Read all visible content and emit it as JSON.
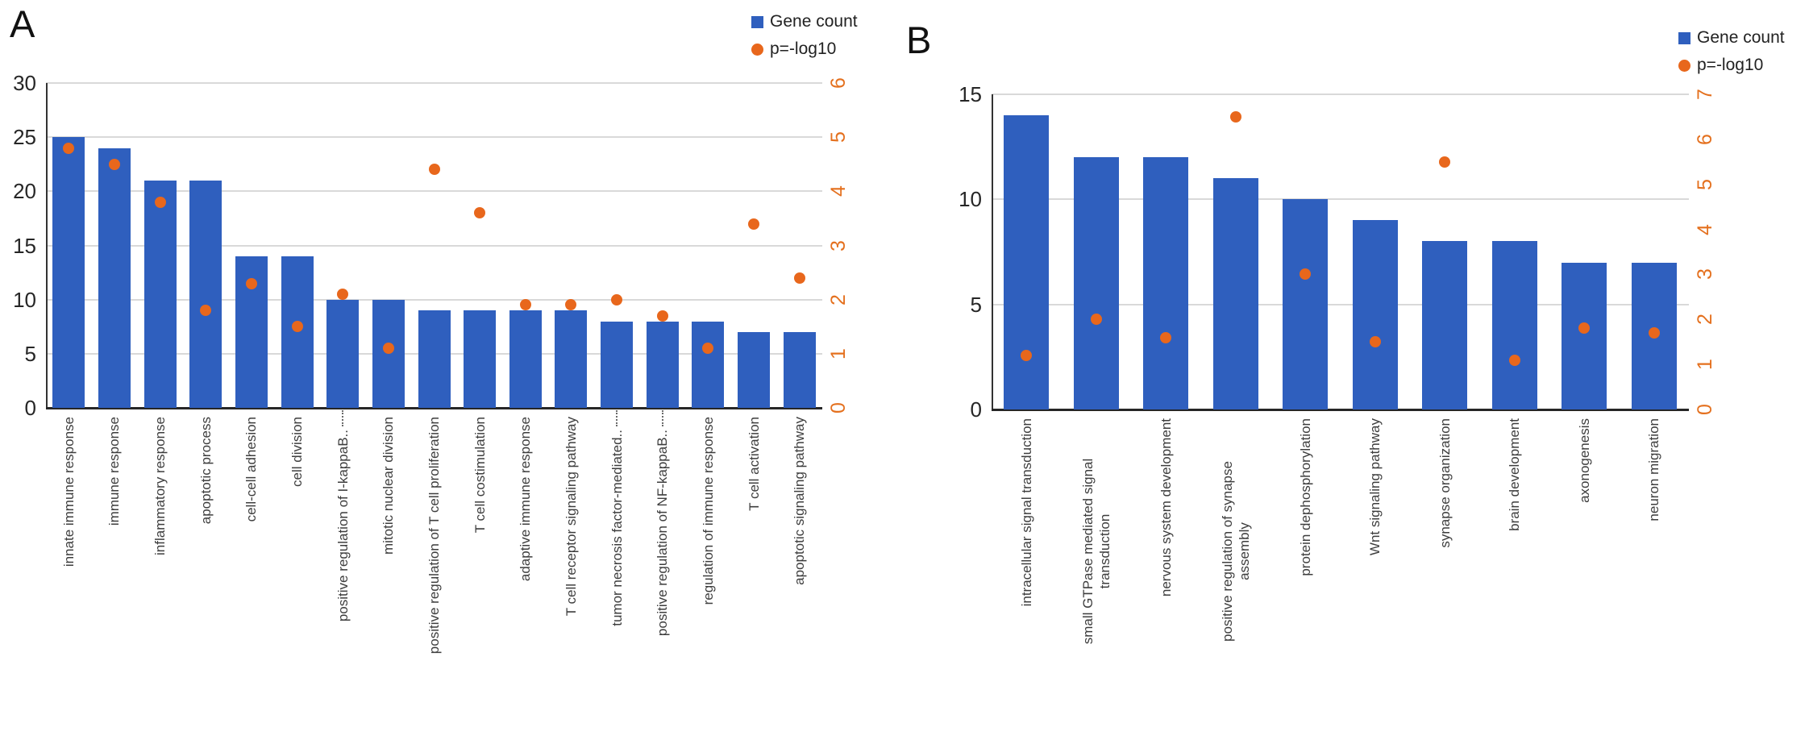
{
  "figure": {
    "panels": [
      {
        "panel_label": "A"
      },
      {
        "panel_label": "B"
      }
    ]
  },
  "colors": {
    "bar_blue": "#2F5FBE",
    "dot_orange": "#E8671C",
    "right_axis_text": "#E4701E",
    "gridline": "#D9D9D9",
    "axis_line": "#333333"
  },
  "chart_data": [
    {
      "type": "bar",
      "panel": "A",
      "title": "",
      "xlabel": "",
      "ylabel_left": "",
      "ylabel_right": "",
      "grid": true,
      "legend_position": "top-right",
      "categories": [
        "innate immune response",
        "immune response",
        "inflammatory response",
        "apoptotic process",
        "cell-cell adhesion",
        "cell division",
        "positive regulation of I-kappaB..",
        "mitotic nuclear division",
        "positive regulation of T cell proliferation",
        "T cell costimulation",
        "adaptive immune response",
        "T cell receptor signaling pathway",
        "tumor necrosis factor-mediated..",
        "positive regulation of NF-kappaB..",
        "regulation of immune response",
        "T cell activation",
        "apoptotic signaling pathway"
      ],
      "series": [
        {
          "name": "Gene count",
          "type": "bar",
          "axis": "left",
          "values": [
            25,
            24,
            21,
            21,
            14,
            14,
            10,
            10,
            9,
            9,
            9,
            9,
            8,
            8,
            8,
            7,
            7
          ]
        },
        {
          "name": "p=-log10",
          "type": "scatter",
          "axis": "right",
          "values": [
            4.8,
            4.5,
            3.8,
            1.8,
            2.3,
            1.5,
            2.1,
            1.1,
            4.4,
            3.6,
            1.9,
            1.9,
            2.0,
            1.7,
            1.1,
            3.4,
            2.4
          ]
        }
      ],
      "left_axis": {
        "min": 0,
        "max": 30,
        "ticks": [
          0,
          5,
          10,
          15,
          20,
          25,
          30
        ]
      },
      "right_axis": {
        "min": 0,
        "max": 6,
        "ticks": [
          0,
          1,
          2,
          3,
          4,
          5,
          6
        ]
      },
      "truncated_label_columns": [
        6,
        12,
        13
      ]
    },
    {
      "type": "bar",
      "panel": "B",
      "title": "",
      "xlabel": "",
      "ylabel_left": "",
      "ylabel_right": "",
      "grid": true,
      "legend_position": "top-right",
      "categories": [
        "intracellular signal transduction",
        "small GTPase mediated signal\ntransduction",
        "nervous system development",
        "positive regulation of synapse\nassembly",
        "protein dephosphorylation",
        "Wnt signaling pathway",
        "synapse organization",
        "brain development",
        "axonogenesis",
        "neuron migration"
      ],
      "series": [
        {
          "name": "Gene count",
          "type": "bar",
          "axis": "left",
          "values": [
            14,
            12,
            12,
            11,
            10,
            9,
            8,
            8,
            7,
            7
          ]
        },
        {
          "name": "p=-log10",
          "type": "scatter",
          "axis": "right",
          "values": [
            1.2,
            2.0,
            1.6,
            6.5,
            3.0,
            1.5,
            5.5,
            1.1,
            1.8,
            1.7
          ]
        }
      ],
      "left_axis": {
        "min": 0,
        "max": 15,
        "ticks": [
          0,
          5,
          10,
          15
        ]
      },
      "right_axis": {
        "min": 0,
        "max": 7,
        "ticks": [
          0,
          1,
          2,
          3,
          4,
          5,
          6,
          7
        ]
      },
      "truncated_label_columns": []
    }
  ]
}
